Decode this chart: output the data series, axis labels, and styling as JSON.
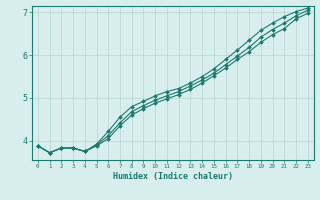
{
  "xlabel": "Humidex (Indice chaleur)",
  "ylabel": "",
  "x_values": [
    0,
    1,
    2,
    3,
    4,
    5,
    6,
    7,
    8,
    9,
    10,
    11,
    12,
    13,
    14,
    15,
    16,
    17,
    18,
    19,
    20,
    21,
    22,
    23
  ],
  "line1_y": [
    3.88,
    3.72,
    3.83,
    3.83,
    3.75,
    3.9,
    4.12,
    4.42,
    4.68,
    4.82,
    4.95,
    5.05,
    5.15,
    5.28,
    5.42,
    5.58,
    5.78,
    5.98,
    6.18,
    6.42,
    6.6,
    6.75,
    6.92,
    7.05
  ],
  "line2_y": [
    3.88,
    3.72,
    3.83,
    3.83,
    3.75,
    3.92,
    4.22,
    4.55,
    4.8,
    4.92,
    5.05,
    5.15,
    5.22,
    5.35,
    5.5,
    5.68,
    5.9,
    6.12,
    6.35,
    6.58,
    6.75,
    6.9,
    7.02,
    7.1
  ],
  "line3_y": [
    3.88,
    3.72,
    3.83,
    3.83,
    3.75,
    3.88,
    4.05,
    4.35,
    4.6,
    4.75,
    4.88,
    4.98,
    5.08,
    5.2,
    5.35,
    5.52,
    5.7,
    5.9,
    6.08,
    6.3,
    6.48,
    6.62,
    6.85,
    6.98
  ],
  "line_color": "#1a7a6e",
  "bg_color": "#d8eeed",
  "grid_color": "#b8d5d2",
  "ylim": [
    3.55,
    7.15
  ],
  "xlim": [
    -0.5,
    23.5
  ],
  "yticks": [
    4,
    5,
    6,
    7
  ],
  "xtick_labels": [
    "0",
    "1",
    "2",
    "3",
    "4",
    "5",
    "6",
    "7",
    "8",
    "9",
    "10",
    "11",
    "12",
    "13",
    "14",
    "15",
    "16",
    "17",
    "18",
    "19",
    "20",
    "21",
    "22",
    "23"
  ]
}
